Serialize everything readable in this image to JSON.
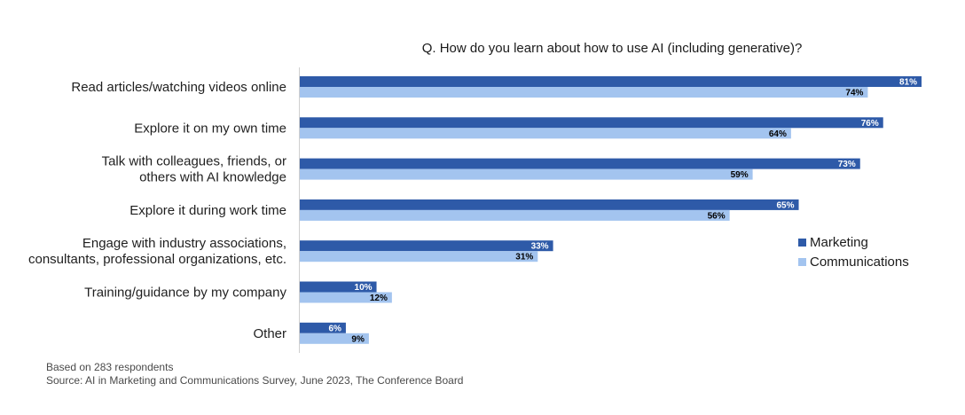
{
  "chart_data": {
    "type": "bar",
    "orientation": "horizontal",
    "title": "Q. How do you learn about how to use AI (including generative)?",
    "categories": [
      [
        "Read articles/watching videos online"
      ],
      [
        "Explore it on my own time"
      ],
      [
        "Talk with colleagues, friends, or",
        "others with AI knowledge"
      ],
      [
        "Explore it during work time"
      ],
      [
        "Engage with industry associations,",
        "consultants, professional organizations, etc."
      ],
      [
        "Training/guidance by my company"
      ],
      [
        "Other"
      ]
    ],
    "series": [
      {
        "name": "Marketing",
        "color": "#2e5aa8",
        "label_color": "#ffffff",
        "values": [
          81,
          76,
          73,
          65,
          33,
          10,
          6
        ]
      },
      {
        "name": "Communications",
        "color": "#a3c4ef",
        "label_color": "#000000",
        "values": [
          74,
          64,
          59,
          56,
          31,
          12,
          9
        ]
      }
    ],
    "value_suffix": "%",
    "xlim": [
      0,
      81
    ],
    "xaxis_visible": false,
    "grid": false,
    "legend": "right"
  },
  "notes": {
    "respondents": "Based on 283 respondents",
    "source": "Source: AI in Marketing and Communications Survey, June 2023, The Conference Board"
  }
}
